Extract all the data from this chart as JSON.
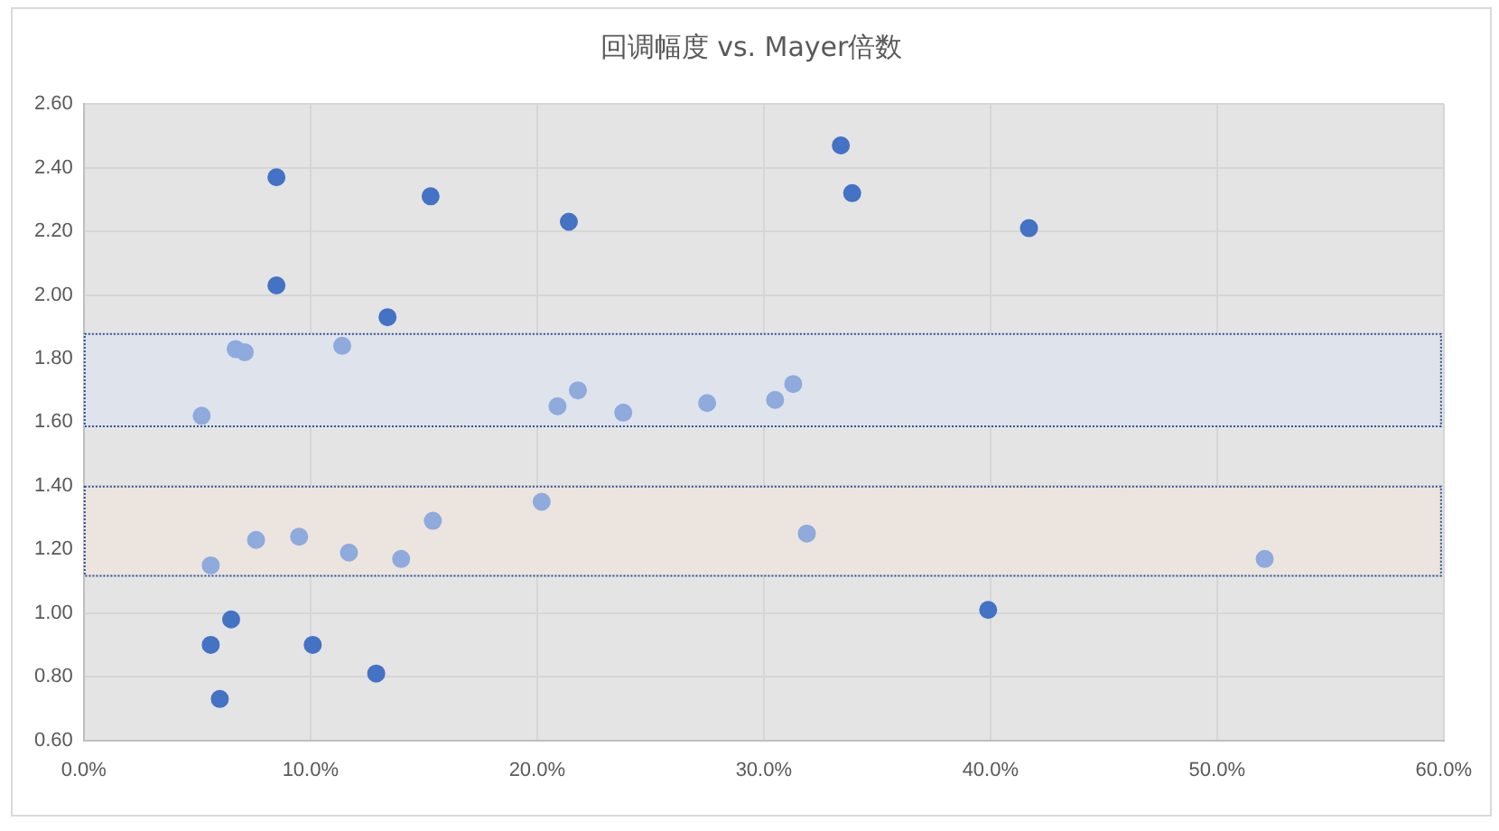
{
  "chart_data": {
    "type": "scatter",
    "title": "回调幅度 vs. Mayer倍数",
    "xlim": [
      0,
      60
    ],
    "xticks": [
      {
        "value": 0,
        "label": "0.0%"
      },
      {
        "value": 10,
        "label": "10.0%"
      },
      {
        "value": 20,
        "label": "20.0%"
      },
      {
        "value": 30,
        "label": "30.0%"
      },
      {
        "value": 40,
        "label": "40.0%"
      },
      {
        "value": 50,
        "label": "50.0%"
      },
      {
        "value": 60,
        "label": "60.0%"
      }
    ],
    "ylim": [
      0.6,
      2.6
    ],
    "yticks": [
      {
        "value": 0.6,
        "label": "0.60"
      },
      {
        "value": 0.8,
        "label": "0.80"
      },
      {
        "value": 1.0,
        "label": "1.00"
      },
      {
        "value": 1.2,
        "label": "1.20"
      },
      {
        "value": 1.4,
        "label": "1.40"
      },
      {
        "value": 1.6,
        "label": "1.60"
      },
      {
        "value": 1.8,
        "label": "1.80"
      },
      {
        "value": 2.0,
        "label": "2.00"
      },
      {
        "value": 2.2,
        "label": "2.20"
      },
      {
        "value": 2.4,
        "label": "2.40"
      },
      {
        "value": 2.6,
        "label": "2.60"
      }
    ],
    "grid": true,
    "legend": false,
    "marker": "circle",
    "bands": [
      {
        "axis": "y",
        "from": 1.59,
        "to": 1.88,
        "color": "#dfe3ec"
      },
      {
        "axis": "y",
        "from": 1.12,
        "to": 1.4,
        "color": "#ece4df"
      }
    ],
    "series": [
      {
        "color": "#4472c4",
        "x": [
          8.5,
          8.5,
          15.3,
          21.4,
          13.4,
          33.4,
          33.9,
          41.7,
          39.9,
          5.6,
          6.5,
          6.0,
          10.1,
          12.9
        ],
        "values": [
          2.37,
          2.03,
          2.31,
          2.23,
          1.93,
          2.47,
          2.32,
          2.21,
          1.01,
          0.9,
          0.98,
          0.73,
          0.9,
          0.81
        ]
      },
      {
        "color": "#8faadc",
        "x": [
          5.2,
          6.7,
          7.1,
          11.4,
          20.9,
          21.8,
          23.8,
          27.5,
          30.5,
          31.3,
          5.6,
          7.6,
          9.5,
          11.7,
          14.0,
          15.4,
          20.2,
          31.9,
          52.1
        ],
        "values": [
          1.62,
          1.83,
          1.82,
          1.84,
          1.65,
          1.7,
          1.63,
          1.66,
          1.67,
          1.72,
          1.15,
          1.23,
          1.24,
          1.19,
          1.17,
          1.29,
          1.35,
          1.25,
          1.17
        ]
      }
    ]
  }
}
